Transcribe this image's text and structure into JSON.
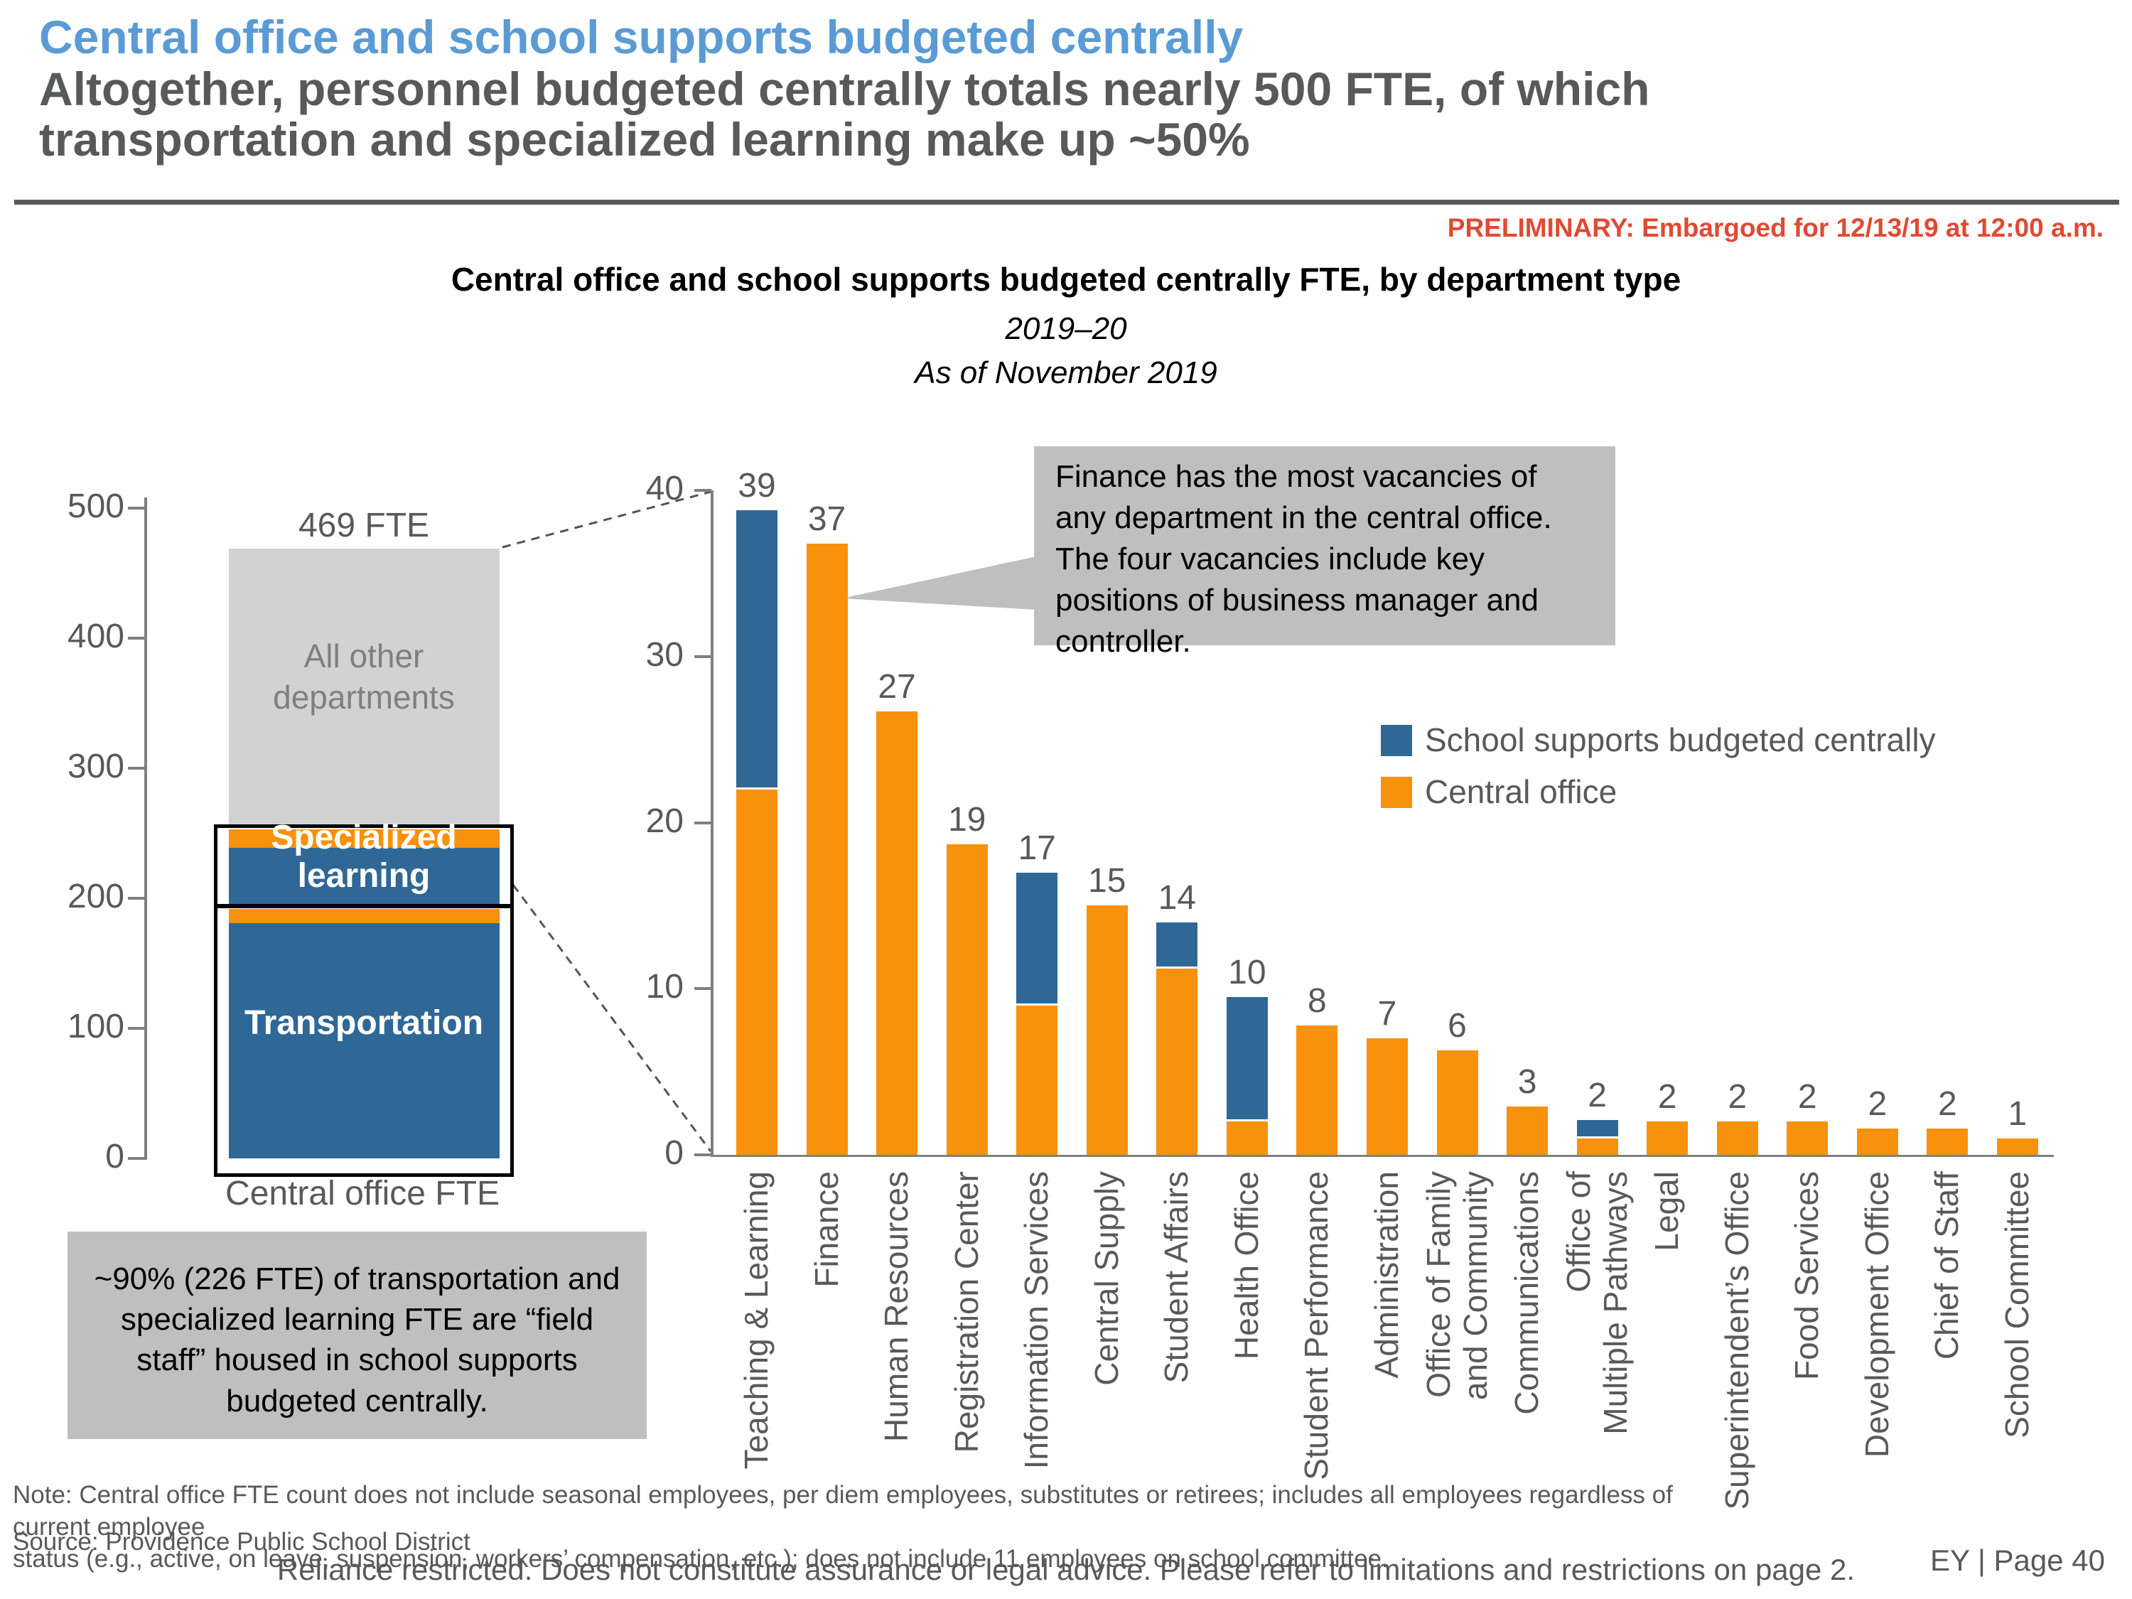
{
  "header": {
    "title": "Central office and school supports budgeted centrally",
    "subtitle_line1": "Altogether, personnel budgeted centrally totals nearly 500 FTE, of which",
    "subtitle_line2": "transportation and specialized learning make up ~50%",
    "preliminary": "PRELIMINARY: Embargoed for 12/13/19 at 12:00 a.m."
  },
  "chart_header": {
    "title": "Central office and school supports budgeted centrally FTE, by department type",
    "subtitle1": "2019–20",
    "subtitle2": "As of November 2019"
  },
  "colors": {
    "central_office": "#F8910B",
    "school_supports": "#2F6896",
    "all_other": "#D2D2D2",
    "callout_bg": "#BFBFBF",
    "axis_text": "#595959",
    "title_blue": "#5B9BD5",
    "preliminary_red": "#E04A33"
  },
  "annotations": {
    "callout": "Finance has the most vacancies of any department in the central office. The four vacancies include key positions of business manager and controller.",
    "gray_note": "~90% (226 FTE) of transportation and specialized learning FTE are “field staff” housed in school supports budgeted centrally."
  },
  "legend": {
    "school_supports": "School supports budgeted centrally",
    "central_office": "Central office"
  },
  "footer": {
    "note_line1": "Note: Central office FTE count does not include seasonal employees, per diem employees, substitutes or retirees; includes all employees regardless of current employee",
    "note_line2": "status (e.g., active, on leave, suspension, workers’ compensation, etc.); does not include 11 employees on school committee.",
    "source": "Source: Providence Public School District",
    "reliance": "Reliance restricted. Does not constitute assurance or legal advice. Please refer to limitations and restrictions on page 2.",
    "page": "EY | Page 40"
  },
  "chart_data": [
    {
      "type": "bar",
      "name": "central_office_fte_summary",
      "title": "Central office FTE",
      "total_label": "469 FTE",
      "xlabel": "Central office FTE",
      "ylim": [
        0,
        500
      ],
      "yticks": [
        0,
        100,
        200,
        300,
        400,
        500
      ],
      "segment_labels": {
        "all_other": "All other departments",
        "specialized": "Specialized learning",
        "transportation": "Transportation"
      },
      "segments": [
        {
          "name": "transportation-school-supports",
          "from": 0,
          "to": 181,
          "series": "school_supports"
        },
        {
          "name": "transportation-central-office",
          "from": 181,
          "to": 192,
          "series": "central_office"
        },
        {
          "name": "specialized-school-supports",
          "from": 194.5,
          "to": 239,
          "series": "school_supports"
        },
        {
          "name": "specialized-central-office",
          "from": 239,
          "to": 253,
          "series": "central_office"
        },
        {
          "name": "all-other-departments",
          "from": 255,
          "to": 469,
          "series": "all_other"
        }
      ]
    },
    {
      "type": "bar",
      "name": "fte_by_department",
      "stacked": true,
      "ylim": [
        0,
        40
      ],
      "yticks": [
        0,
        10,
        20,
        30,
        40
      ],
      "series_order": [
        "central_office",
        "school_supports"
      ],
      "departments": [
        {
          "lines": [
            "Teaching & Learning"
          ],
          "central_office": 22,
          "school_supports": 16.8,
          "label": "39"
        },
        {
          "lines": [
            "Finance"
          ],
          "central_office": 36.8,
          "school_supports": 0,
          "label": "37"
        },
        {
          "lines": [
            "Human Resources"
          ],
          "central_office": 26.7,
          "school_supports": 0,
          "label": "27"
        },
        {
          "lines": [
            "Registration Center"
          ],
          "central_office": 18.7,
          "school_supports": 0,
          "label": "19"
        },
        {
          "lines": [
            "Information Services"
          ],
          "central_office": 9,
          "school_supports": 8,
          "label": "17"
        },
        {
          "lines": [
            "Central Supply"
          ],
          "central_office": 15,
          "school_supports": 0,
          "label": "15"
        },
        {
          "lines": [
            "Student Affairs"
          ],
          "central_office": 11.2,
          "school_supports": 2.8,
          "label": "14"
        },
        {
          "lines": [
            "Health Office"
          ],
          "central_office": 2,
          "school_supports": 7.5,
          "label": "10"
        },
        {
          "lines": [
            "Student Performance"
          ],
          "central_office": 7.8,
          "school_supports": 0,
          "label": "8"
        },
        {
          "lines": [
            "Administration"
          ],
          "central_office": 7,
          "school_supports": 0,
          "label": "7"
        },
        {
          "lines": [
            "Office of Family",
            "and Community"
          ],
          "central_office": 6.3,
          "school_supports": 0,
          "label": "6"
        },
        {
          "lines": [
            "Communications"
          ],
          "central_office": 2.9,
          "school_supports": 0,
          "label": "3"
        },
        {
          "lines": [
            "Office of",
            "Multiple Pathways"
          ],
          "central_office": 1,
          "school_supports": 1.1,
          "label": "2"
        },
        {
          "lines": [
            "Legal"
          ],
          "central_office": 2,
          "school_supports": 0,
          "label": "2"
        },
        {
          "lines": [
            "Superintendent’s Office"
          ],
          "central_office": 2,
          "school_supports": 0,
          "label": "2"
        },
        {
          "lines": [
            "Food Services"
          ],
          "central_office": 2,
          "school_supports": 0,
          "label": "2"
        },
        {
          "lines": [
            "Development Office"
          ],
          "central_office": 1.6,
          "school_supports": 0,
          "label": "2"
        },
        {
          "lines": [
            "Chief of Staff"
          ],
          "central_office": 1.6,
          "school_supports": 0,
          "label": "2"
        },
        {
          "lines": [
            "School Committee"
          ],
          "central_office": 1,
          "school_supports": 0,
          "label": "1"
        }
      ]
    }
  ]
}
